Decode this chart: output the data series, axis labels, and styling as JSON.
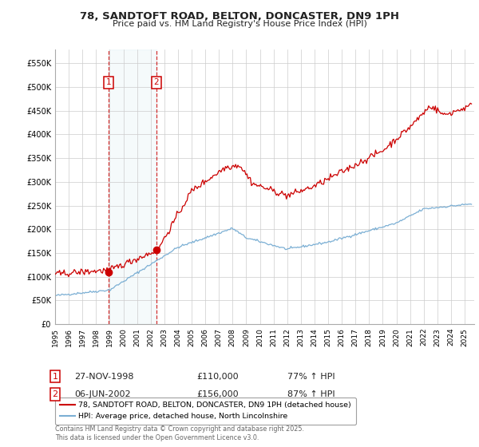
{
  "title_line1": "78, SANDTOFT ROAD, BELTON, DONCASTER, DN9 1PH",
  "title_line2": "Price paid vs. HM Land Registry's House Price Index (HPI)",
  "background_color": "#ffffff",
  "plot_bg_color": "#ffffff",
  "grid_color": "#cccccc",
  "red_line_color": "#cc0000",
  "blue_line_color": "#7bafd4",
  "sale1_date": "27-NOV-1998",
  "sale1_price": 110000,
  "sale2_date": "06-JUN-2002",
  "sale2_price": 156000,
  "legend_label_red": "78, SANDTOFT ROAD, BELTON, DONCASTER, DN9 1PH (detached house)",
  "legend_label_blue": "HPI: Average price, detached house, North Lincolnshire",
  "footnote": "Contains HM Land Registry data © Crown copyright and database right 2025.\nThis data is licensed under the Open Government Licence v3.0.",
  "ylim_min": 0,
  "ylim_max": 580000,
  "yticks": [
    0,
    50000,
    100000,
    150000,
    200000,
    250000,
    300000,
    350000,
    400000,
    450000,
    500000,
    550000
  ],
  "ytick_labels": [
    "£0",
    "£50K",
    "£100K",
    "£150K",
    "£200K",
    "£250K",
    "£300K",
    "£350K",
    "£400K",
    "£450K",
    "£500K",
    "£550K"
  ],
  "sale1_year": 1998.92,
  "sale2_year": 2002.43,
  "xmin": 1995,
  "xmax": 2025.7
}
